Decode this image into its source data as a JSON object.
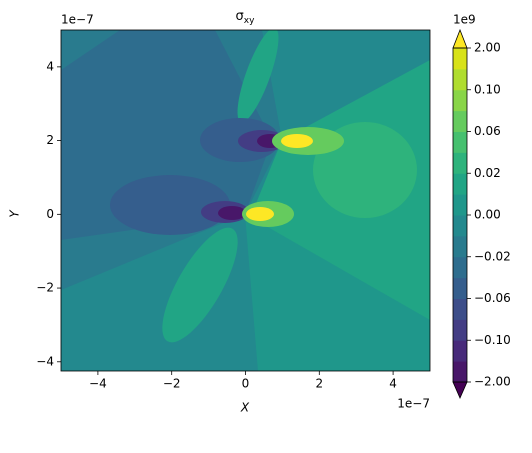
{
  "chart_data": {
    "type": "contour",
    "title_symbol": "σ",
    "title_subscript": "xy",
    "x_label": "X",
    "y_label": "Y",
    "x_offset_text": "1e−7",
    "y_offset_text": "1e−7",
    "xlim": [
      -5,
      5
    ],
    "ylim": [
      -4.25,
      5
    ],
    "xticks": [
      {
        "value": -4,
        "label": "−4"
      },
      {
        "value": -2,
        "label": "−2"
      },
      0,
      2,
      4
    ],
    "yticks": [
      {
        "value": -4,
        "label": "−4"
      },
      {
        "value": -2,
        "label": "−2"
      },
      0,
      2,
      4
    ],
    "colorbar": {
      "offset_text": "1e9",
      "ticks": [
        {
          "value": 2,
          "label": "2.00"
        },
        {
          "value": 0.1,
          "label": "0.10"
        },
        {
          "value": 0.06,
          "label": "0.06"
        },
        {
          "value": 0.02,
          "label": "0.02"
        },
        {
          "value": 0,
          "label": "0.00"
        },
        {
          "value": -0.02,
          "label": "−0.02"
        },
        {
          "value": -0.06,
          "label": "−0.06"
        },
        {
          "value": -0.1,
          "label": "−0.10"
        },
        {
          "value": -2,
          "label": "−2.00"
        }
      ],
      "colors": [
        "#440154",
        "#481769",
        "#472a7a",
        "#433d84",
        "#3d4e8a",
        "#355e8d",
        "#2e6d8e",
        "#297b8e",
        "#23898e",
        "#1f978b",
        "#21a585",
        "#2eb37c",
        "#46c06f",
        "#65cb5e",
        "#89d548",
        "#b0dd2f",
        "#d8e219",
        "#fde725"
      ]
    }
  }
}
